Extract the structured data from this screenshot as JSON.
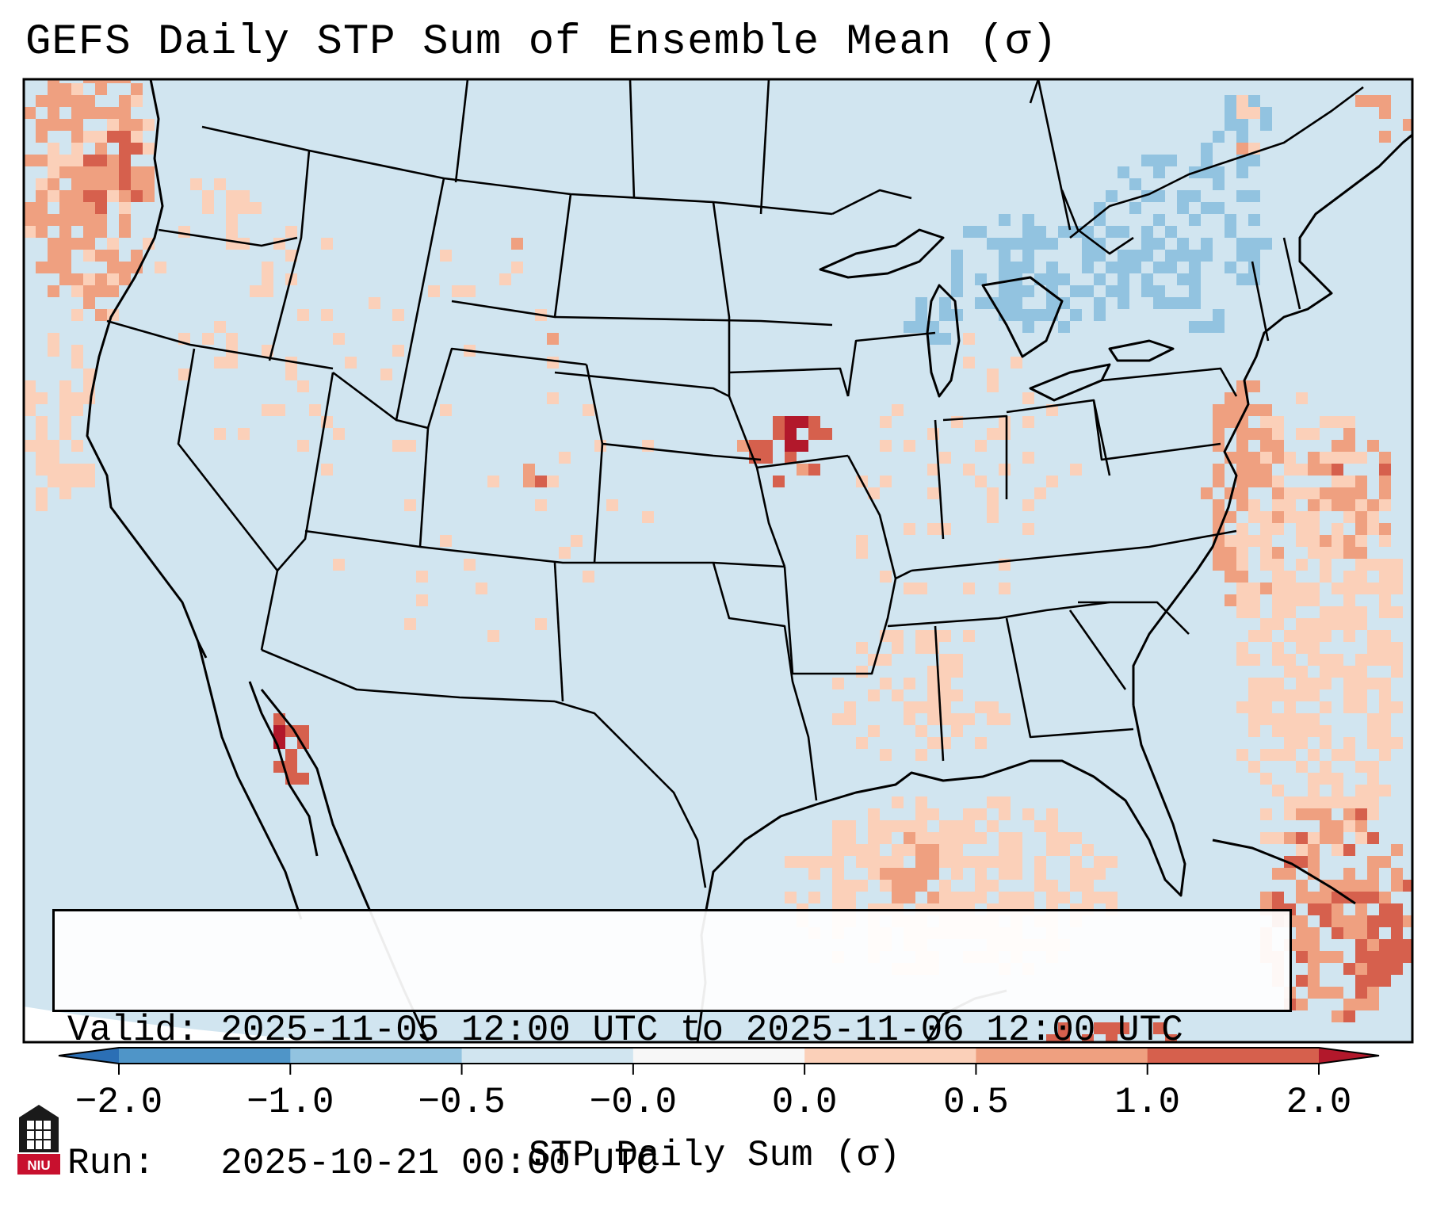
{
  "title": "GEFS Daily STP Sum of Ensemble Mean (σ)",
  "info": {
    "valid_line": "Valid: 2025-11-05 12:00 UTC to 2025-11-06 12:00 UTC",
    "run_line": "Run:   2025-10-21 00:00 UTC"
  },
  "colorbar": {
    "label": "STP Daily Sum (σ)",
    "ticks": [
      "−2.0",
      "−1.0",
      "−0.5",
      "−0.0",
      "0.0",
      "0.5",
      "1.0",
      "2.0"
    ],
    "levels": [
      -2.0,
      -1.0,
      -0.5,
      0.0,
      0.0,
      0.5,
      1.0,
      2.0
    ],
    "colors": [
      "#2b6fb5",
      "#4f95c8",
      "#92c3e0",
      "#d1e5f0",
      "#f7f7f7",
      "#fbd0b9",
      "#efa080",
      "#d6604d",
      "#b2182b"
    ],
    "under_color": "#2b6fb5",
    "over_color": "#b2182b"
  },
  "logo": {
    "text": "NIU",
    "color": "#c8102e"
  },
  "map": {
    "background_color": "#d1e5f0",
    "border_color": "#000000",
    "projection": "Lambert conformal, CONUS",
    "region": "Contiguous United States, southern Canada, northern Mexico",
    "notable_features": [
      {
        "feature": "STP maximum > 2.0 σ",
        "area": "Iowa / northern Missouri",
        "level": 2.0
      },
      {
        "feature": "STP maximum > 2.0 σ",
        "area": "Gulf of California",
        "level": 2.0
      },
      {
        "feature": "Positive anomaly band 0 to 1 σ",
        "area": "Western Atlantic off the East Coast",
        "level": 0.5
      },
      {
        "feature": "Positive anomaly 0 to 0.5 σ",
        "area": "Gulf of Mexico",
        "level": 0.25
      },
      {
        "feature": "Negative anomaly −0.5 to −1.0 σ",
        "area": "Great Lakes / southern Ontario / Quebec",
        "level": -0.7
      }
    ]
  }
}
